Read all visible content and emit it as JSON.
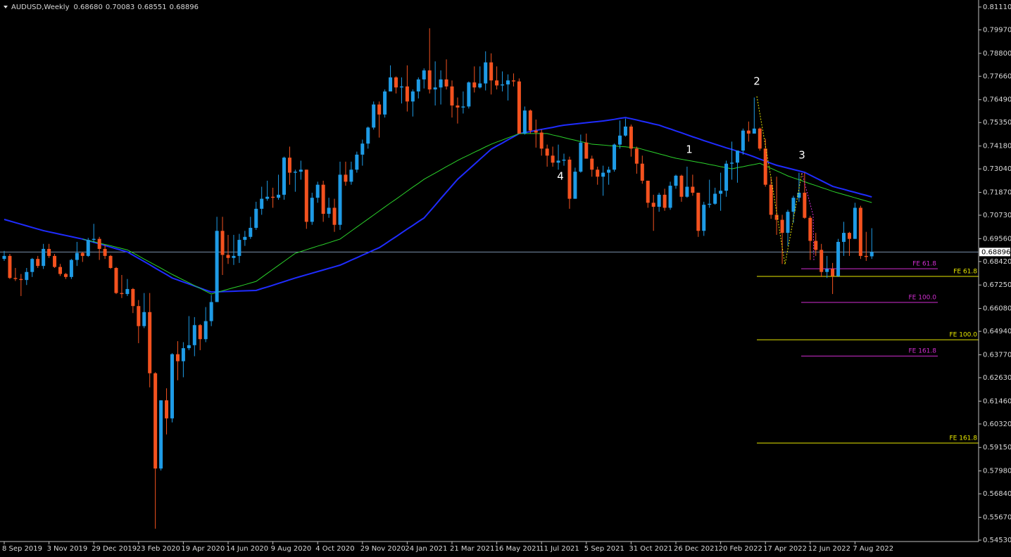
{
  "chart_data": {
    "type": "candlestick",
    "title": "AUDUSD,Weekly",
    "readout": [
      "0.68680",
      "0.70083",
      "0.68551",
      "0.68896"
    ],
    "up_color": "#1e9be6",
    "down_color": "#f4521f",
    "ylim": [
      0.5446,
      0.8146
    ],
    "yticks": [
      {
        "value": 0.8111,
        "label": "0.81110"
      },
      {
        "value": 0.7997,
        "label": "0.79970"
      },
      {
        "value": 0.788,
        "label": "0.78800"
      },
      {
        "value": 0.7766,
        "label": "0.77660"
      },
      {
        "value": 0.7649,
        "label": "0.76490"
      },
      {
        "value": 0.7535,
        "label": "0.75350"
      },
      {
        "value": 0.7418,
        "label": "0.74180"
      },
      {
        "value": 0.7304,
        "label": "0.73040"
      },
      {
        "value": 0.7187,
        "label": "0.71870"
      },
      {
        "value": 0.7073,
        "label": "0.70730"
      },
      {
        "value": 0.6956,
        "label": "0.69560"
      },
      {
        "value": 0.6842,
        "label": "0.68420"
      },
      {
        "value": 0.6725,
        "label": "0.67250"
      },
      {
        "value": 0.6608,
        "label": "0.66080"
      },
      {
        "value": 0.6494,
        "label": "0.64940"
      },
      {
        "value": 0.6377,
        "label": "0.63770"
      },
      {
        "value": 0.6263,
        "label": "0.62630"
      },
      {
        "value": 0.6146,
        "label": "0.61460"
      },
      {
        "value": 0.6032,
        "label": "0.60320"
      },
      {
        "value": 0.5915,
        "label": "0.59150"
      },
      {
        "value": 0.5798,
        "label": "0.57980"
      },
      {
        "value": 0.5684,
        "label": "0.56840"
      },
      {
        "value": 0.5567,
        "label": "0.55670"
      },
      {
        "value": 0.5453,
        "label": "0.54530"
      }
    ],
    "categories": [
      "8 Sep 2019",
      null,
      null,
      null,
      null,
      null,
      null,
      null,
      "3 Nov 2019",
      null,
      null,
      null,
      null,
      null,
      null,
      null,
      "29 Dec 2019",
      null,
      null,
      null,
      null,
      null,
      null,
      null,
      "23 Feb 2020",
      null,
      null,
      null,
      null,
      null,
      null,
      null,
      "19 Apr 2020",
      null,
      null,
      null,
      null,
      null,
      null,
      null,
      "14 Jun 2020",
      null,
      null,
      null,
      null,
      null,
      null,
      null,
      "9 Aug 2020",
      null,
      null,
      null,
      null,
      null,
      null,
      null,
      "4 Oct 2020",
      null,
      null,
      null,
      null,
      null,
      null,
      null,
      "29 Nov 2020",
      null,
      null,
      null,
      null,
      null,
      null,
      null,
      "24 Jan 2021",
      null,
      null,
      null,
      null,
      null,
      null,
      null,
      "21 Mar 2021",
      null,
      null,
      null,
      null,
      null,
      null,
      null,
      "16 May 2021",
      null,
      null,
      null,
      null,
      null,
      null,
      null,
      "11 Jul 2021",
      null,
      null,
      null,
      null,
      null,
      null,
      null,
      "5 Sep 2021",
      null,
      null,
      null,
      null,
      null,
      null,
      null,
      "31 Oct 2021",
      null,
      null,
      null,
      null,
      null,
      null,
      null,
      "26 Dec 2021",
      null,
      null,
      null,
      null,
      null,
      null,
      null,
      "20 Feb 2022",
      null,
      null,
      null,
      null,
      null,
      null,
      null,
      "17 Apr 2022",
      null,
      null,
      null,
      null,
      null,
      null,
      null,
      "12 Jun 2022",
      null,
      null,
      null,
      null,
      null,
      null,
      null,
      "7 Aug 2022",
      null,
      null,
      null
    ],
    "open": [
      0.6855,
      0.687,
      0.676,
      0.6755,
      0.675,
      0.679,
      0.6855,
      0.682,
      0.6905,
      0.687,
      0.6815,
      0.678,
      0.6765,
      0.685,
      0.6885,
      0.687,
      0.695,
      0.6955,
      0.6905,
      0.687,
      0.681,
      0.6685,
      0.668,
      0.6705,
      0.662,
      0.652,
      0.659,
      0.6285,
      0.581,
      0.615,
      0.606,
      0.638,
      0.6345,
      0.641,
      0.6425,
      0.6525,
      0.6455,
      0.6545,
      0.664,
      0.6995,
      0.6875,
      0.686,
      0.687,
      0.695,
      0.6965,
      0.701,
      0.7105,
      0.7155,
      0.7165,
      0.716,
      0.7175,
      0.736,
      0.7285,
      0.729,
      0.73,
      0.704,
      0.716,
      0.7225,
      0.708,
      0.711,
      0.7025,
      0.7275,
      0.724,
      0.73,
      0.7375,
      0.743,
      0.751,
      0.7625,
      0.7575,
      0.769,
      0.776,
      0.771,
      0.7715,
      0.764,
      0.769,
      0.775,
      0.7795,
      0.77,
      0.771,
      0.775,
      0.7715,
      0.762,
      0.761,
      0.7615,
      0.7735,
      0.771,
      0.773,
      0.7835,
      0.7745,
      0.772,
      0.7725,
      0.7745,
      0.774,
      0.748,
      0.7595,
      0.7495,
      0.7485,
      0.7405,
      0.737,
      0.7335,
      0.7345,
      0.735,
      0.7155,
      0.729,
      0.7435,
      0.7355,
      0.73,
      0.7265,
      0.7285,
      0.73,
      0.7425,
      0.747,
      0.7515,
      0.7405,
      0.733,
      0.7245,
      0.7135,
      0.7115,
      0.7175,
      0.711,
      0.722,
      0.727,
      0.7165,
      0.7215,
      0.7185,
      0.6995,
      0.7125,
      0.713,
      0.718,
      0.7195,
      0.733,
      0.7335,
      0.7395,
      0.7495,
      0.748,
      0.7505,
      0.7405,
      0.7225,
      0.7075,
      0.705,
      0.6985,
      0.709,
      0.716,
      0.7185,
      0.706,
      0.6945,
      0.69,
      0.679,
      0.6805,
      0.677,
      0.694,
      0.6985,
      0.6955,
      0.711,
      0.687,
      0.6868
    ],
    "high": [
      0.6895,
      0.688,
      0.681,
      0.678,
      0.681,
      0.686,
      0.687,
      0.693,
      0.693,
      0.688,
      0.683,
      0.6785,
      0.6855,
      0.694,
      0.689,
      0.696,
      0.703,
      0.6965,
      0.6925,
      0.6875,
      0.6815,
      0.6775,
      0.6755,
      0.671,
      0.665,
      0.6685,
      0.6685,
      0.629,
      0.615,
      0.621,
      0.6385,
      0.6445,
      0.644,
      0.657,
      0.6565,
      0.653,
      0.6615,
      0.6675,
      0.7065,
      0.7065,
      0.6975,
      0.6975,
      0.698,
      0.6995,
      0.7065,
      0.714,
      0.7215,
      0.7245,
      0.721,
      0.7275,
      0.7365,
      0.7415,
      0.73,
      0.7345,
      0.73,
      0.7185,
      0.724,
      0.7245,
      0.716,
      0.7155,
      0.734,
      0.734,
      0.734,
      0.739,
      0.745,
      0.7515,
      0.764,
      0.764,
      0.77,
      0.782,
      0.7765,
      0.776,
      0.782,
      0.77,
      0.776,
      0.7805,
      0.8005,
      0.784,
      0.7795,
      0.785,
      0.7745,
      0.766,
      0.769,
      0.774,
      0.7815,
      0.7815,
      0.789,
      0.788,
      0.7815,
      0.779,
      0.7775,
      0.778,
      0.7755,
      0.7615,
      0.76,
      0.755,
      0.75,
      0.7425,
      0.7415,
      0.7425,
      0.738,
      0.7365,
      0.731,
      0.7475,
      0.748,
      0.737,
      0.7315,
      0.732,
      0.7315,
      0.743,
      0.7545,
      0.7555,
      0.7525,
      0.7415,
      0.737,
      0.7245,
      0.7175,
      0.7185,
      0.7205,
      0.724,
      0.7275,
      0.7275,
      0.7315,
      0.7275,
      0.7185,
      0.714,
      0.725,
      0.721,
      0.7285,
      0.7345,
      0.744,
      0.7395,
      0.7505,
      0.754,
      0.766,
      0.751,
      0.7455,
      0.7265,
      0.7265,
      0.7075,
      0.71,
      0.717,
      0.7285,
      0.7285,
      0.707,
      0.6985,
      0.693,
      0.687,
      0.6835,
      0.6955,
      0.704,
      0.699,
      0.7135,
      0.712,
      0.699,
      0.70083
    ],
    "low": [
      0.6845,
      0.6755,
      0.6745,
      0.667,
      0.6725,
      0.6765,
      0.681,
      0.6805,
      0.686,
      0.681,
      0.677,
      0.6755,
      0.6755,
      0.682,
      0.684,
      0.6865,
      0.6935,
      0.685,
      0.6855,
      0.6805,
      0.668,
      0.666,
      0.667,
      0.6585,
      0.6435,
      0.651,
      0.6215,
      0.551,
      0.58,
      0.598,
      0.604,
      0.625,
      0.6265,
      0.64,
      0.637,
      0.64,
      0.644,
      0.652,
      0.664,
      0.6775,
      0.683,
      0.6825,
      0.6835,
      0.692,
      0.6955,
      0.7,
      0.7075,
      0.7145,
      0.711,
      0.715,
      0.715,
      0.7225,
      0.719,
      0.725,
      0.7005,
      0.7025,
      0.7135,
      0.704,
      0.706,
      0.699,
      0.7,
      0.722,
      0.7225,
      0.7285,
      0.732,
      0.7405,
      0.75,
      0.746,
      0.756,
      0.769,
      0.768,
      0.763,
      0.759,
      0.7565,
      0.7655,
      0.7705,
      0.768,
      0.762,
      0.7625,
      0.77,
      0.756,
      0.753,
      0.758,
      0.7605,
      0.7685,
      0.7705,
      0.7695,
      0.7675,
      0.77,
      0.769,
      0.7645,
      0.7715,
      0.748,
      0.7475,
      0.748,
      0.741,
      0.737,
      0.7315,
      0.7315,
      0.73,
      0.732,
      0.7105,
      0.7155,
      0.7285,
      0.7355,
      0.7265,
      0.7225,
      0.717,
      0.7225,
      0.729,
      0.7405,
      0.7465,
      0.7365,
      0.728,
      0.723,
      0.711,
      0.6995,
      0.709,
      0.7095,
      0.71,
      0.7205,
      0.714,
      0.716,
      0.717,
      0.6965,
      0.697,
      0.711,
      0.7125,
      0.7095,
      0.7165,
      0.725,
      0.7235,
      0.7375,
      0.744,
      0.748,
      0.7395,
      0.7215,
      0.7055,
      0.6975,
      0.683,
      0.692,
      0.7035,
      0.714,
      0.7055,
      0.685,
      0.687,
      0.6765,
      0.676,
      0.668,
      0.6765,
      0.687,
      0.687,
      0.6955,
      0.6855,
      0.6845,
      0.68551
    ],
    "close": [
      0.687,
      0.676,
      0.6755,
      0.675,
      0.679,
      0.6855,
      0.682,
      0.6905,
      0.687,
      0.6815,
      0.678,
      0.6765,
      0.685,
      0.6885,
      0.687,
      0.695,
      0.6955,
      0.6905,
      0.687,
      0.681,
      0.6685,
      0.668,
      0.6705,
      0.662,
      0.652,
      0.659,
      0.6285,
      0.581,
      0.615,
      0.606,
      0.638,
      0.6345,
      0.641,
      0.6425,
      0.6525,
      0.6455,
      0.6545,
      0.664,
      0.6995,
      0.6875,
      0.686,
      0.687,
      0.695,
      0.6965,
      0.701,
      0.7105,
      0.7155,
      0.7165,
      0.716,
      0.7175,
      0.736,
      0.7285,
      0.729,
      0.73,
      0.704,
      0.716,
      0.7225,
      0.708,
      0.711,
      0.7025,
      0.7275,
      0.724,
      0.73,
      0.7375,
      0.743,
      0.751,
      0.7625,
      0.7575,
      0.769,
      0.776,
      0.771,
      0.7715,
      0.764,
      0.769,
      0.775,
      0.7795,
      0.77,
      0.771,
      0.775,
      0.7715,
      0.762,
      0.761,
      0.7615,
      0.7735,
      0.771,
      0.773,
      0.7835,
      0.7745,
      0.772,
      0.7725,
      0.7745,
      0.774,
      0.748,
      0.7595,
      0.7495,
      0.7485,
      0.7405,
      0.737,
      0.7335,
      0.7345,
      0.735,
      0.7155,
      0.729,
      0.7435,
      0.7355,
      0.73,
      0.7265,
      0.7285,
      0.73,
      0.7425,
      0.747,
      0.7515,
      0.7405,
      0.733,
      0.7245,
      0.7135,
      0.7115,
      0.7175,
      0.711,
      0.722,
      0.727,
      0.7165,
      0.7215,
      0.7185,
      0.6995,
      0.7125,
      0.713,
      0.718,
      0.7195,
      0.733,
      0.7335,
      0.7395,
      0.7495,
      0.748,
      0.7505,
      0.7405,
      0.7225,
      0.7075,
      0.705,
      0.6985,
      0.709,
      0.716,
      0.7185,
      0.706,
      0.6945,
      0.69,
      0.679,
      0.6805,
      0.677,
      0.694,
      0.6985,
      0.6955,
      0.711,
      0.687,
      0.6865,
      0.68896
    ],
    "lines": [
      {
        "color": "#1f2cff",
        "width": 2,
        "values": [
          0.7052,
          0.7044,
          0.7036,
          0.7028,
          0.702,
          0.7012,
          0.7004,
          0.6996,
          0.699,
          0.6984,
          0.6978,
          0.6972,
          0.6966,
          0.696,
          0.6954,
          0.6946,
          0.6938,
          0.693,
          0.6922,
          0.6914,
          0.6906,
          0.6898,
          0.689,
          0.6874,
          0.6858,
          0.6842,
          0.6826,
          0.6809,
          0.6793,
          0.6777,
          0.676,
          0.675,
          0.674,
          0.673,
          0.672,
          0.671,
          0.67,
          0.669,
          0.6691,
          0.6692,
          0.6693,
          0.6694,
          0.6695,
          0.6696,
          0.6697,
          0.6698,
          0.6707,
          0.6715,
          0.6724,
          0.6733,
          0.6742,
          0.6751,
          0.676,
          0.6768,
          0.6776,
          0.6784,
          0.6792,
          0.68,
          0.6808,
          0.6816,
          0.6824,
          0.6836,
          0.6849,
          0.6861,
          0.6874,
          0.6886,
          0.6899,
          0.6911,
          0.6929,
          0.6948,
          0.6966,
          0.6985,
          0.7004,
          0.7022,
          0.7041,
          0.7059,
          0.7091,
          0.7123,
          0.7156,
          0.7188,
          0.722,
          0.7252,
          0.7277,
          0.7302,
          0.7327,
          0.7352,
          0.7377,
          0.7402,
          0.7418,
          0.7433,
          0.7449,
          0.7464,
          0.748,
          0.7485,
          0.749,
          0.7496,
          0.7501,
          0.7506,
          0.7511,
          0.7517,
          0.7522,
          0.7525,
          0.7528,
          0.7531,
          0.7534,
          0.7537,
          0.754,
          0.7543,
          0.7547,
          0.7551,
          0.7556,
          0.756,
          0.7554,
          0.7548,
          0.7541,
          0.7535,
          0.7528,
          0.7522,
          0.7512,
          0.7503,
          0.7493,
          0.7484,
          0.7474,
          0.7464,
          0.7455,
          0.7445,
          0.7436,
          0.7427,
          0.7418,
          0.7409,
          0.7401,
          0.7392,
          0.7383,
          0.7374,
          0.7364,
          0.7353,
          0.7343,
          0.7332,
          0.7322,
          0.7315,
          0.7308,
          0.7301,
          0.7294,
          0.7287,
          0.7273,
          0.7259,
          0.7245,
          0.7231,
          0.7217,
          0.7209,
          0.7202,
          0.7194,
          0.7187,
          0.7179,
          0.7172,
          0.7164
        ]
      },
      {
        "color": "#2bd22b",
        "width": 1,
        "values": [
          null,
          null,
          null,
          null,
          null,
          null,
          null,
          null,
          null,
          null,
          null,
          null,
          null,
          null,
          0.6954,
          0.6947,
          0.6941,
          0.6934,
          0.6927,
          0.6921,
          0.6914,
          0.6907,
          0.69,
          0.6885,
          0.687,
          0.6854,
          0.6839,
          0.6824,
          0.6809,
          0.6793,
          0.6778,
          0.6764,
          0.675,
          0.6736,
          0.6722,
          0.6708,
          0.6694,
          0.668,
          0.6688,
          0.6696,
          0.6704,
          0.6712,
          0.6719,
          0.6727,
          0.6735,
          0.6743,
          0.6763,
          0.6783,
          0.6803,
          0.6823,
          0.6843,
          0.6863,
          0.6883,
          0.6892,
          0.6901,
          0.691,
          0.6919,
          0.6927,
          0.6936,
          0.6945,
          0.6954,
          0.6974,
          0.6994,
          0.7014,
          0.7034,
          0.7054,
          0.7074,
          0.7094,
          0.7114,
          0.7134,
          0.7153,
          0.7173,
          0.7193,
          0.7213,
          0.7232,
          0.7252,
          0.7268,
          0.7283,
          0.7299,
          0.7315,
          0.733,
          0.7346,
          0.736,
          0.7373,
          0.7387,
          0.74,
          0.7414,
          0.7427,
          0.7438,
          0.7448,
          0.7459,
          0.7469,
          0.748,
          0.748,
          0.748,
          0.748,
          0.748,
          0.748,
          0.7473,
          0.7467,
          0.746,
          0.7453,
          0.7447,
          0.744,
          0.7434,
          0.7427,
          0.7425,
          0.7423,
          0.742,
          0.7418,
          0.7416,
          0.7414,
          0.7411,
          0.7409,
          0.7402,
          0.7394,
          0.7387,
          0.7379,
          0.7372,
          0.7364,
          0.7357,
          0.7352,
          0.7347,
          0.7342,
          0.7337,
          0.7332,
          0.7326,
          0.7321,
          0.7315,
          0.731,
          0.7304,
          0.731,
          0.7315,
          0.7321,
          0.7326,
          0.7332,
          0.7319,
          0.7307,
          0.7294,
          0.7282,
          0.7269,
          0.7259,
          0.725,
          0.724,
          0.723,
          0.7221,
          0.7211,
          0.7202,
          0.7192,
          0.7184,
          0.7176,
          0.7168,
          0.716,
          0.7152,
          0.7144,
          0.7136
        ]
      }
    ],
    "last_price": {
      "value": 0.68896,
      "label": "0.68896"
    },
    "fib_expansions": [
      {
        "color": "#e8e800",
        "levels": [
          {
            "value": 0.6768,
            "label": "FE 61.8"
          },
          {
            "value": 0.6452,
            "label": "FE 100.0"
          },
          {
            "value": 0.5937,
            "label": "FE 161.8"
          }
        ]
      },
      {
        "color": "#d22ed2",
        "levels": [
          {
            "value": 0.6806,
            "label": "FE 61.8"
          },
          {
            "value": 0.6638,
            "label": "FE 100.0"
          },
          {
            "value": 0.6371,
            "label": "FE 161.8"
          }
        ]
      }
    ],
    "wave_labels": [
      "1",
      "2",
      "3",
      "4"
    ]
  }
}
